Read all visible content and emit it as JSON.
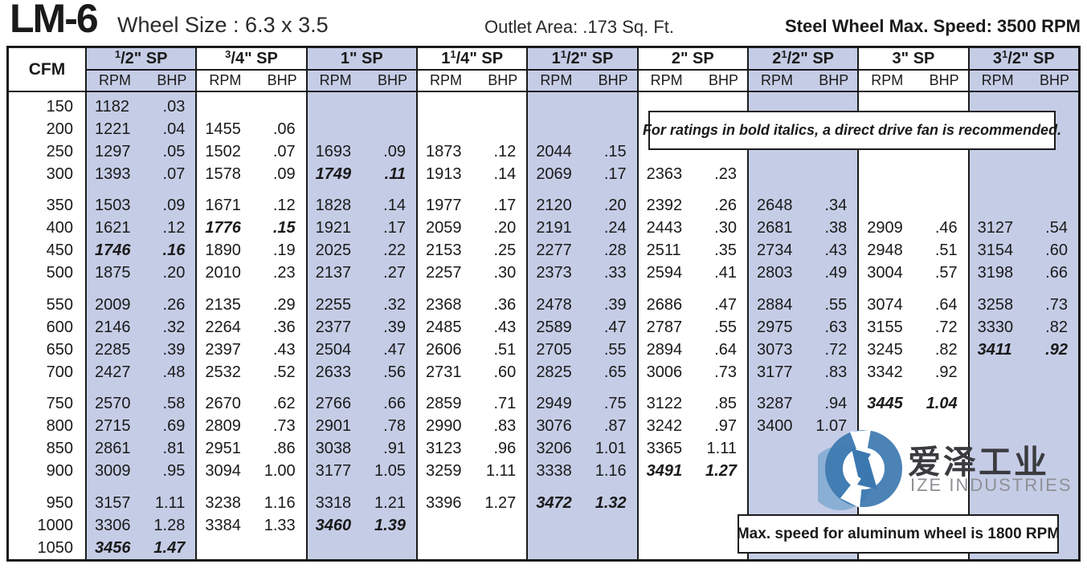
{
  "title": {
    "model": "LM-6",
    "wheel_size": "Wheel Size : 6.3 x 3.5",
    "outlet_area": "Outlet Area: .173 Sq. Ft.",
    "max_speed": "Steel Wheel Max. Speed: 3500 RPM"
  },
  "notes": {
    "direct_drive": "For ratings in bold italics, a direct drive fan is recommended.",
    "aluminum": "Max. speed for aluminum wheel is 1800 RPM"
  },
  "watermark": {
    "cn": "爱泽工业",
    "en": "IZE INDUSTRIES"
  },
  "colors": {
    "shade": "#c5cde6",
    "border": "#1a1a1a",
    "logo_blue": "#3c78b0",
    "logo_light_blue": "#7aa8d0"
  },
  "table": {
    "cfm_header": "CFM",
    "sub_headers": [
      "RPM",
      "BHP"
    ],
    "sp_suffix": "\" SP",
    "sp_columns": [
      {
        "whole": "",
        "num": "1",
        "den": "2",
        "shaded": true
      },
      {
        "whole": "",
        "num": "3",
        "den": "4",
        "shaded": false
      },
      {
        "whole": "1",
        "num": "",
        "den": "",
        "shaded": true
      },
      {
        "whole": "1",
        "num": "1",
        "den": "4",
        "shaded": false
      },
      {
        "whole": "1",
        "num": "1",
        "den": "2",
        "shaded": true
      },
      {
        "whole": "2",
        "num": "",
        "den": "",
        "shaded": false
      },
      {
        "whole": "2",
        "num": "1",
        "den": "2",
        "shaded": true
      },
      {
        "whole": "3",
        "num": "",
        "den": "",
        "shaded": false
      },
      {
        "whole": "3",
        "num": "1",
        "den": "2",
        "shaded": true
      }
    ],
    "row_groups": [
      [
        {
          "cfm": "150",
          "cells": [
            [
              "1182",
              ".03"
            ],
            [],
            [],
            [],
            [],
            [],
            [],
            [],
            []
          ]
        },
        {
          "cfm": "200",
          "cells": [
            [
              "1221",
              ".04"
            ],
            [
              "1455",
              ".06"
            ],
            [],
            [],
            [],
            [],
            [],
            [],
            []
          ]
        },
        {
          "cfm": "250",
          "cells": [
            [
              "1297",
              ".05"
            ],
            [
              "1502",
              ".07"
            ],
            [
              "1693",
              ".09"
            ],
            [
              "1873",
              ".12"
            ],
            [
              "2044",
              ".15"
            ],
            [],
            [],
            [],
            []
          ]
        },
        {
          "cfm": "300",
          "cells": [
            [
              "1393",
              ".07"
            ],
            [
              "1578",
              ".09"
            ],
            [
              "1749",
              ".11",
              1
            ],
            [
              "1913",
              ".14"
            ],
            [
              "2069",
              ".17"
            ],
            [
              "2363",
              ".23"
            ],
            [],
            [],
            []
          ]
        }
      ],
      [
        {
          "cfm": "350",
          "cells": [
            [
              "1503",
              ".09"
            ],
            [
              "1671",
              ".12"
            ],
            [
              "1828",
              ".14"
            ],
            [
              "1977",
              ".17"
            ],
            [
              "2120",
              ".20"
            ],
            [
              "2392",
              ".26"
            ],
            [
              "2648",
              ".34"
            ],
            [],
            []
          ]
        },
        {
          "cfm": "400",
          "cells": [
            [
              "1621",
              ".12"
            ],
            [
              "1776",
              ".15",
              1
            ],
            [
              "1921",
              ".17"
            ],
            [
              "2059",
              ".20"
            ],
            [
              "2191",
              ".24"
            ],
            [
              "2443",
              ".30"
            ],
            [
              "2681",
              ".38"
            ],
            [
              "2909",
              ".46"
            ],
            [
              "3127",
              ".54"
            ]
          ]
        },
        {
          "cfm": "450",
          "cells": [
            [
              "1746",
              ".16",
              1
            ],
            [
              "1890",
              ".19"
            ],
            [
              "2025",
              ".22"
            ],
            [
              "2153",
              ".25"
            ],
            [
              "2277",
              ".28"
            ],
            [
              "2511",
              ".35"
            ],
            [
              "2734",
              ".43"
            ],
            [
              "2948",
              ".51"
            ],
            [
              "3154",
              ".60"
            ]
          ]
        },
        {
          "cfm": "500",
          "cells": [
            [
              "1875",
              ".20"
            ],
            [
              "2010",
              ".23"
            ],
            [
              "2137",
              ".27"
            ],
            [
              "2257",
              ".30"
            ],
            [
              "2373",
              ".33"
            ],
            [
              "2594",
              ".41"
            ],
            [
              "2803",
              ".49"
            ],
            [
              "3004",
              ".57"
            ],
            [
              "3198",
              ".66"
            ]
          ]
        }
      ],
      [
        {
          "cfm": "550",
          "cells": [
            [
              "2009",
              ".26"
            ],
            [
              "2135",
              ".29"
            ],
            [
              "2255",
              ".32"
            ],
            [
              "2368",
              ".36"
            ],
            [
              "2478",
              ".39"
            ],
            [
              "2686",
              ".47"
            ],
            [
              "2884",
              ".55"
            ],
            [
              "3074",
              ".64"
            ],
            [
              "3258",
              ".73"
            ]
          ]
        },
        {
          "cfm": "600",
          "cells": [
            [
              "2146",
              ".32"
            ],
            [
              "2264",
              ".36"
            ],
            [
              "2377",
              ".39"
            ],
            [
              "2485",
              ".43"
            ],
            [
              "2589",
              ".47"
            ],
            [
              "2787",
              ".55"
            ],
            [
              "2975",
              ".63"
            ],
            [
              "3155",
              ".72"
            ],
            [
              "3330",
              ".82"
            ]
          ]
        },
        {
          "cfm": "650",
          "cells": [
            [
              "2285",
              ".39"
            ],
            [
              "2397",
              ".43"
            ],
            [
              "2504",
              ".47"
            ],
            [
              "2606",
              ".51"
            ],
            [
              "2705",
              ".55"
            ],
            [
              "2894",
              ".64"
            ],
            [
              "3073",
              ".72"
            ],
            [
              "3245",
              ".82"
            ],
            [
              "3411",
              ".92",
              1
            ]
          ]
        },
        {
          "cfm": "700",
          "cells": [
            [
              "2427",
              ".48"
            ],
            [
              "2532",
              ".52"
            ],
            [
              "2633",
              ".56"
            ],
            [
              "2731",
              ".60"
            ],
            [
              "2825",
              ".65"
            ],
            [
              "3006",
              ".73"
            ],
            [
              "3177",
              ".83"
            ],
            [
              "3342",
              ".92"
            ],
            []
          ]
        }
      ],
      [
        {
          "cfm": "750",
          "cells": [
            [
              "2570",
              ".58"
            ],
            [
              "2670",
              ".62"
            ],
            [
              "2766",
              ".66"
            ],
            [
              "2859",
              ".71"
            ],
            [
              "2949",
              ".75"
            ],
            [
              "3122",
              ".85"
            ],
            [
              "3287",
              ".94"
            ],
            [
              "3445",
              "1.04",
              1
            ],
            []
          ]
        },
        {
          "cfm": "800",
          "cells": [
            [
              "2715",
              ".69"
            ],
            [
              "2809",
              ".73"
            ],
            [
              "2901",
              ".78"
            ],
            [
              "2990",
              ".83"
            ],
            [
              "3076",
              ".87"
            ],
            [
              "3242",
              ".97"
            ],
            [
              "3400",
              "1.07"
            ],
            [],
            []
          ]
        },
        {
          "cfm": "850",
          "cells": [
            [
              "2861",
              ".81"
            ],
            [
              "2951",
              ".86"
            ],
            [
              "3038",
              ".91"
            ],
            [
              "3123",
              ".96"
            ],
            [
              "3206",
              "1.01"
            ],
            [
              "3365",
              "1.11"
            ],
            [],
            [],
            []
          ]
        },
        {
          "cfm": "900",
          "cells": [
            [
              "3009",
              ".95"
            ],
            [
              "3094",
              "1.00"
            ],
            [
              "3177",
              "1.05"
            ],
            [
              "3259",
              "1.11"
            ],
            [
              "3338",
              "1.16"
            ],
            [
              "3491",
              "1.27",
              1
            ],
            [],
            [],
            []
          ]
        }
      ],
      [
        {
          "cfm": "950",
          "cells": [
            [
              "3157",
              "1.11"
            ],
            [
              "3238",
              "1.16"
            ],
            [
              "3318",
              "1.21"
            ],
            [
              "3396",
              "1.27"
            ],
            [
              "3472",
              "1.32",
              1
            ],
            [],
            [],
            [],
            []
          ]
        },
        {
          "cfm": "1000",
          "cells": [
            [
              "3306",
              "1.28"
            ],
            [
              "3384",
              "1.33"
            ],
            [
              "3460",
              "1.39",
              1
            ],
            [],
            [],
            [],
            [],
            [],
            []
          ]
        },
        {
          "cfm": "1050",
          "cells": [
            [
              "3456",
              "1.47",
              1
            ],
            [],
            [],
            [],
            [],
            [],
            [],
            [],
            []
          ]
        }
      ]
    ]
  }
}
